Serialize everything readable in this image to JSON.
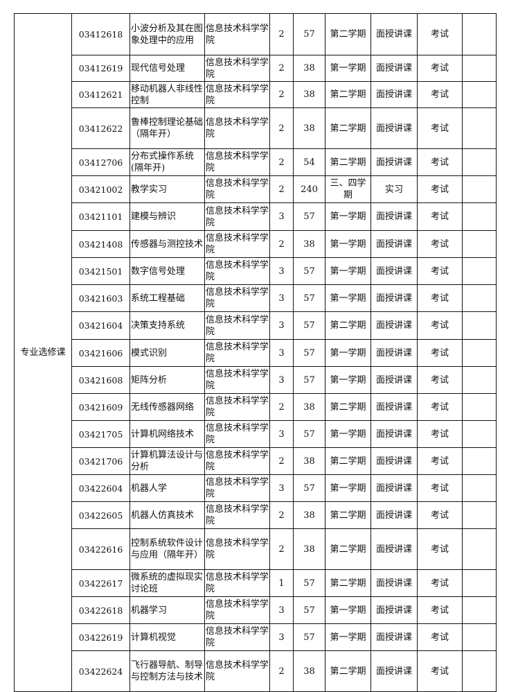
{
  "category": "专业选修课",
  "rows": [
    {
      "code": "03412618",
      "name": "小波分析及其在图象处理中的应用",
      "dept": "信息技术科学学院",
      "credits": "2",
      "hours": "57",
      "term": "第二学期",
      "mode": "面授讲课",
      "exam": "考试",
      "note": ""
    },
    {
      "code": "03412619",
      "name": "现代信号处理",
      "dept": "信息技术科学学院",
      "credits": "2",
      "hours": "38",
      "term": "第一学期",
      "mode": "面授讲课",
      "exam": "考试",
      "note": ""
    },
    {
      "code": "03412621",
      "name": "移动机器人非线性控制",
      "dept": "信息技术科学学院",
      "credits": "2",
      "hours": "38",
      "term": "第二学期",
      "mode": "面授讲课",
      "exam": "考试",
      "note": ""
    },
    {
      "code": "03412622",
      "name": "鲁棒控制理论基础（隔年开）",
      "dept": "信息技术科学学院",
      "credits": "2",
      "hours": "38",
      "term": "第二学期",
      "mode": "面授讲课",
      "exam": "考试",
      "note": ""
    },
    {
      "code": "03412706",
      "name": "分布式操作系统(隔年开)",
      "dept": "信息技术科学学院",
      "credits": "2",
      "hours": "54",
      "term": "第二学期",
      "mode": "面授讲课",
      "exam": "考试",
      "note": ""
    },
    {
      "code": "03421002",
      "name": "教学实习",
      "dept": "信息技术科学学院",
      "credits": "2",
      "hours": "240",
      "term": "三、四学期",
      "mode": "实习",
      "exam": "考试",
      "note": ""
    },
    {
      "code": "03421101",
      "name": "建模与辨识",
      "dept": "信息技术科学学院",
      "credits": "3",
      "hours": "57",
      "term": "第一学期",
      "mode": "面授讲课",
      "exam": "考试",
      "note": ""
    },
    {
      "code": "03421408",
      "name": "传感器与测控技术",
      "dept": "信息技术科学学院",
      "credits": "2",
      "hours": "38",
      "term": "第一学期",
      "mode": "面授讲课",
      "exam": "考试",
      "note": ""
    },
    {
      "code": "03421501",
      "name": "数字信号处理",
      "dept": "信息技术科学学院",
      "credits": "3",
      "hours": "57",
      "term": "第一学期",
      "mode": "面授讲课",
      "exam": "考试",
      "note": ""
    },
    {
      "code": "03421603",
      "name": "系统工程基础",
      "dept": "信息技术科学学院",
      "credits": "3",
      "hours": "57",
      "term": "第一学期",
      "mode": "面授讲课",
      "exam": "考试",
      "note": ""
    },
    {
      "code": "03421604",
      "name": "决策支持系统",
      "dept": "信息技术科学学院",
      "credits": "3",
      "hours": "57",
      "term": "第二学期",
      "mode": "面授讲课",
      "exam": "考试",
      "note": ""
    },
    {
      "code": "03421606",
      "name": "模式识别",
      "dept": "信息技术科学学院",
      "credits": "3",
      "hours": "57",
      "term": "第一学期",
      "mode": "面授讲课",
      "exam": "考试",
      "note": ""
    },
    {
      "code": "03421608",
      "name": "矩阵分析",
      "dept": "信息技术科学学院",
      "credits": "3",
      "hours": "57",
      "term": "第一学期",
      "mode": "面授讲课",
      "exam": "考试",
      "note": ""
    },
    {
      "code": "03421609",
      "name": "无线传感器网络",
      "dept": "信息技术科学学院",
      "credits": "2",
      "hours": "38",
      "term": "第二学期",
      "mode": "面授讲课",
      "exam": "考试",
      "note": ""
    },
    {
      "code": "03421705",
      "name": "计算机网络技术",
      "dept": "信息技术科学学院",
      "credits": "3",
      "hours": "57",
      "term": "第一学期",
      "mode": "面授讲课",
      "exam": "考试",
      "note": ""
    },
    {
      "code": "03421706",
      "name": "计算机算法设计与分析",
      "dept": "信息技术科学学院",
      "credits": "2",
      "hours": "38",
      "term": "第二学期",
      "mode": "面授讲课",
      "exam": "考试",
      "note": ""
    },
    {
      "code": "03422604",
      "name": "机器人学",
      "dept": "信息技术科学学院",
      "credits": "3",
      "hours": "57",
      "term": "第一学期",
      "mode": "面授讲课",
      "exam": "考试",
      "note": ""
    },
    {
      "code": "03422605",
      "name": "机器人仿真技术",
      "dept": "信息技术科学学院",
      "credits": "2",
      "hours": "38",
      "term": "第二学期",
      "mode": "面授讲课",
      "exam": "考试",
      "note": ""
    },
    {
      "code": "03422616",
      "name": "控制系统软件设计与应用（隔年开）",
      "dept": "信息技术科学学院",
      "credits": "2",
      "hours": "38",
      "term": "第二学期",
      "mode": "面授讲课",
      "exam": "考试",
      "note": ""
    },
    {
      "code": "03422617",
      "name": "微系统的虚拟现实讨论班",
      "dept": "信息技术科学学院",
      "credits": "1",
      "hours": "57",
      "term": "第二学期",
      "mode": "面授讲课",
      "exam": "考试",
      "note": ""
    },
    {
      "code": "03422618",
      "name": "机器学习",
      "dept": "信息技术科学学院",
      "credits": "3",
      "hours": "57",
      "term": "第一学期",
      "mode": "面授讲课",
      "exam": "考试",
      "note": ""
    },
    {
      "code": "03422619",
      "name": "计算机视觉",
      "dept": "信息技术科学学院",
      "credits": "3",
      "hours": "57",
      "term": "第一学期",
      "mode": "面授讲课",
      "exam": "考试",
      "note": ""
    },
    {
      "code": "03422624",
      "name": "飞行器导航、制导与控制方法与技术",
      "dept": "信息技术科学学院",
      "credits": "2",
      "hours": "38",
      "term": "第二学期",
      "mode": "面授讲课",
      "exam": "考试",
      "note": ""
    }
  ]
}
